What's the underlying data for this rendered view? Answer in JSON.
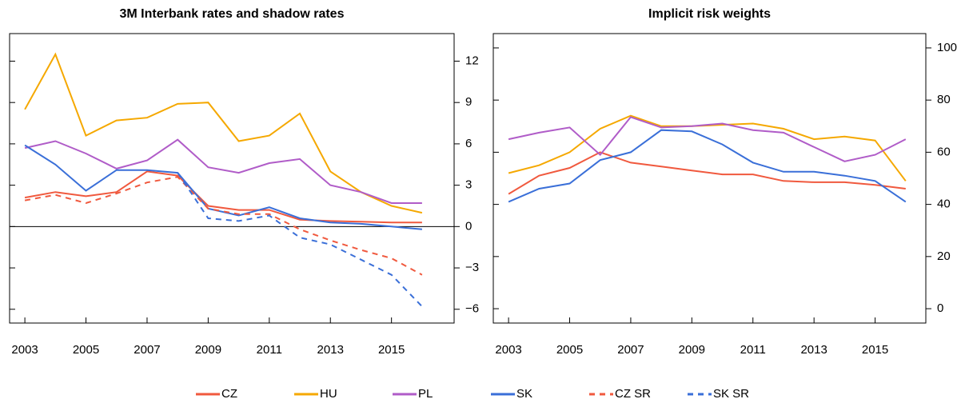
{
  "chart_data": [
    {
      "type": "line",
      "title": "3M Interbank rates and shadow rates",
      "x": [
        2003,
        2004,
        2005,
        2006,
        2007,
        2008,
        2009,
        2010,
        2011,
        2012,
        2013,
        2014,
        2015,
        2016
      ],
      "xlim": [
        2002.5,
        2017.05
      ],
      "xticks": [
        2003,
        2005,
        2007,
        2009,
        2011,
        2013,
        2015
      ],
      "ylim": [
        -7,
        14
      ],
      "yticks": [
        {
          "value": -6,
          "label": "−6"
        },
        {
          "value": -3,
          "label": "−3"
        },
        0,
        3,
        6,
        9,
        12
      ],
      "zero_line": true,
      "series": [
        {
          "name": "CZ",
          "color": "#f0593e",
          "linestyle": "solid",
          "values": [
            2.1,
            2.5,
            2.2,
            2.5,
            4.0,
            3.7,
            1.5,
            1.2,
            1.2,
            0.5,
            0.4,
            0.35,
            0.3,
            0.3
          ]
        },
        {
          "name": "HU",
          "color": "#f5a800",
          "linestyle": "solid",
          "values": [
            8.5,
            12.5,
            6.6,
            7.7,
            7.9,
            8.9,
            9.0,
            6.2,
            6.6,
            8.2,
            4.0,
            2.5,
            1.5,
            1.0
          ]
        },
        {
          "name": "PL",
          "color": "#b05cc8",
          "linestyle": "solid",
          "values": [
            5.7,
            6.2,
            5.3,
            4.2,
            4.8,
            6.3,
            4.3,
            3.9,
            4.6,
            4.9,
            3.0,
            2.5,
            1.7,
            1.7
          ]
        },
        {
          "name": "SK",
          "color": "#3a6fd8",
          "linestyle": "solid",
          "values": [
            5.9,
            4.5,
            2.6,
            4.1,
            4.1,
            3.9,
            1.3,
            0.8,
            1.4,
            0.6,
            0.3,
            0.2,
            0.0,
            -0.2
          ]
        },
        {
          "name": "CZ SR",
          "color": "#f0593e",
          "linestyle": "dashed",
          "values": [
            1.9,
            2.3,
            1.7,
            2.4,
            3.2,
            3.6,
            1.3,
            0.9,
            0.9,
            -0.2,
            -1.0,
            -1.7,
            -2.3,
            -3.5
          ]
        },
        {
          "name": "SK SR",
          "color": "#3a6fd8",
          "linestyle": "dashed",
          "values": [
            null,
            null,
            null,
            null,
            null,
            3.9,
            0.6,
            0.4,
            0.8,
            -0.8,
            -1.3,
            -2.4,
            -3.5,
            -5.8
          ]
        }
      ]
    },
    {
      "type": "line",
      "title": "Implicit risk weights",
      "x": [
        2003,
        2004,
        2005,
        2006,
        2007,
        2008,
        2009,
        2010,
        2011,
        2012,
        2013,
        2014,
        2015,
        2016
      ],
      "xlim": [
        2002.5,
        2016.66
      ],
      "xticks": [
        2003,
        2005,
        2007,
        2009,
        2011,
        2013,
        2015
      ],
      "ylim": [
        -5.5,
        105.5
      ],
      "yticks": [
        0,
        20,
        40,
        60,
        80,
        100
      ],
      "zero_line": false,
      "series": [
        {
          "name": "CZ",
          "color": "#f0593e",
          "linestyle": "solid",
          "values": [
            44,
            51,
            54,
            60,
            56,
            54.5,
            53,
            51.5,
            51.5,
            49,
            48.5,
            48.5,
            47.5,
            46
          ]
        },
        {
          "name": "HU",
          "color": "#f5a800",
          "linestyle": "solid",
          "values": [
            52,
            55,
            60,
            69,
            74,
            70,
            70,
            70.5,
            71,
            69,
            65,
            66,
            64.5,
            49
          ]
        },
        {
          "name": "PL",
          "color": "#b05cc8",
          "linestyle": "solid",
          "values": [
            65,
            67.5,
            69.5,
            59,
            73.5,
            69.5,
            70,
            71,
            68.5,
            67.5,
            62,
            56.5,
            59,
            65
          ]
        },
        {
          "name": "SK",
          "color": "#3a6fd8",
          "linestyle": "solid",
          "values": [
            41,
            46,
            48,
            57,
            60,
            68.5,
            68,
            63,
            56,
            52.5,
            52.5,
            51,
            49,
            41
          ]
        }
      ]
    }
  ]
}
